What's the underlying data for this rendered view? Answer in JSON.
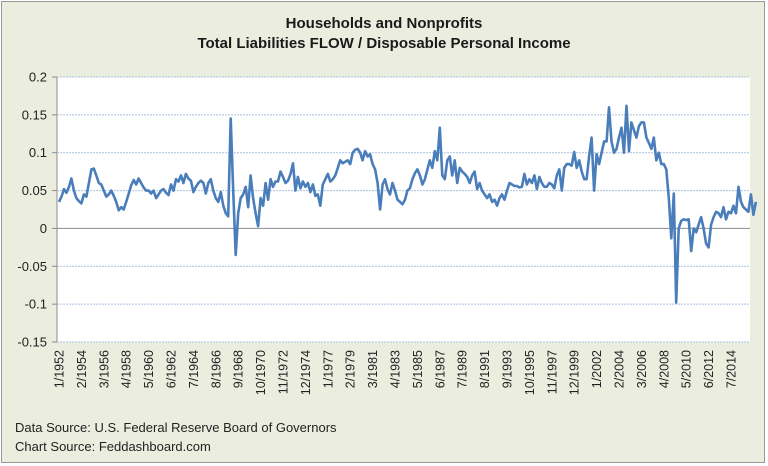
{
  "chart_data": {
    "type": "line",
    "title": "Households and Nonprofits",
    "subtitle": "Total Liabilities FLOW / Disposable Personal Income",
    "xlabel": "",
    "ylabel": "",
    "ylim": [
      -0.15,
      0.2
    ],
    "yticks": [
      0.2,
      0.15,
      0.1,
      0.05,
      0,
      -0.05,
      -0.1,
      -0.15
    ],
    "ytick_labels": [
      "0.2",
      "0.15",
      "0.1",
      "0.05",
      "0",
      "-0.05",
      "-0.1",
      "-0.15"
    ],
    "grid": true,
    "legend": "none",
    "x_start": "1/1952",
    "x_frequency": "quarterly",
    "xtick_labels": [
      "1/1952",
      "2/1954",
      "3/1956",
      "4/1958",
      "5/1960",
      "6/1962",
      "7/1964",
      "8/1966",
      "9/1968",
      "10/1970",
      "11/1972",
      "12/1974",
      "1/1977",
      "2/1979",
      "3/1981",
      "4/1983",
      "5/1985",
      "6/1987",
      "7/1989",
      "8/1991",
      "9/1993",
      "10/1995",
      "11/1997",
      "12/1999",
      "1/2002",
      "2/2004",
      "3/2006",
      "4/2008",
      "5/2010",
      "6/2012",
      "7/2014"
    ],
    "series": [
      {
        "name": "Total Liabilities FLOW / Disposable Personal Income",
        "color": "#4a7ebb",
        "values": [
          0.035,
          0.042,
          0.052,
          0.047,
          0.055,
          0.066,
          0.05,
          0.04,
          0.036,
          0.033,
          0.045,
          0.042,
          0.06,
          0.078,
          0.079,
          0.07,
          0.06,
          0.058,
          0.05,
          0.042,
          0.045,
          0.05,
          0.043,
          0.035,
          0.024,
          0.028,
          0.025,
          0.035,
          0.046,
          0.057,
          0.064,
          0.058,
          0.066,
          0.06,
          0.054,
          0.05,
          0.05,
          0.046,
          0.05,
          0.04,
          0.045,
          0.05,
          0.052,
          0.047,
          0.044,
          0.058,
          0.05,
          0.065,
          0.062,
          0.07,
          0.06,
          0.072,
          0.066,
          0.063,
          0.048,
          0.055,
          0.06,
          0.063,
          0.06,
          0.046,
          0.06,
          0.065,
          0.05,
          0.04,
          0.035,
          0.048,
          0.03,
          0.02,
          0.016,
          0.145,
          0.05,
          -0.035,
          0.02,
          0.04,
          0.045,
          0.055,
          0.028,
          0.07,
          0.04,
          0.02,
          0.003,
          0.04,
          0.03,
          0.06,
          0.038,
          0.065,
          0.055,
          0.062,
          0.062,
          0.075,
          0.068,
          0.06,
          0.063,
          0.072,
          0.086,
          0.05,
          0.068,
          0.053,
          0.062,
          0.055,
          0.06,
          0.048,
          0.058,
          0.043,
          0.045,
          0.03,
          0.058,
          0.065,
          0.072,
          0.062,
          0.065,
          0.07,
          0.08,
          0.09,
          0.086,
          0.088,
          0.09,
          0.085,
          0.1,
          0.104,
          0.105,
          0.1,
          0.09,
          0.102,
          0.095,
          0.098,
          0.085,
          0.078,
          0.06,
          0.025,
          0.058,
          0.065,
          0.052,
          0.045,
          0.06,
          0.05,
          0.038,
          0.035,
          0.032,
          0.038,
          0.05,
          0.053,
          0.065,
          0.073,
          0.078,
          0.07,
          0.058,
          0.065,
          0.078,
          0.09,
          0.08,
          0.102,
          0.09,
          0.133,
          0.07,
          0.065,
          0.09,
          0.095,
          0.07,
          0.09,
          0.06,
          0.08,
          0.075,
          0.072,
          0.068,
          0.06,
          0.07,
          0.075,
          0.052,
          0.06,
          0.05,
          0.045,
          0.04,
          0.045,
          0.035,
          0.038,
          0.03,
          0.04,
          0.045,
          0.038,
          0.05,
          0.06,
          0.058,
          0.056,
          0.056,
          0.054,
          0.055,
          0.072,
          0.058,
          0.065,
          0.06,
          0.07,
          0.052,
          0.068,
          0.06,
          0.055,
          0.055,
          0.06,
          0.058,
          0.053,
          0.07,
          0.078,
          0.05,
          0.08,
          0.085,
          0.085,
          0.083,
          0.101,
          0.08,
          0.09,
          0.075,
          0.065,
          0.065,
          0.095,
          0.12,
          0.05,
          0.098,
          0.085,
          0.1,
          0.115,
          0.115,
          0.16,
          0.115,
          0.1,
          0.105,
          0.12,
          0.133,
          0.1,
          0.162,
          0.102,
          0.14,
          0.13,
          0.12,
          0.135,
          0.14,
          0.14,
          0.12,
          0.113,
          0.105,
          0.12,
          0.09,
          0.1,
          0.085,
          0.085,
          0.078,
          0.04,
          -0.013,
          0.046,
          -0.098,
          0.0,
          0.01,
          0.012,
          0.011,
          0.012,
          -0.03,
          0.0,
          -0.005,
          0.005,
          0.015,
          0.0,
          -0.02,
          -0.025,
          0.005,
          0.015,
          0.022,
          0.02,
          0.015,
          0.028,
          0.012,
          0.022,
          0.02,
          0.03,
          0.02,
          0.055,
          0.035,
          0.028,
          0.025,
          0.022,
          0.045,
          0.018,
          0.035
        ]
      }
    ]
  },
  "source": {
    "data_source": "Data Source: U.S. Federal Reserve Board of Governors",
    "chart_source": "Chart Source: Feddashboard.com"
  }
}
